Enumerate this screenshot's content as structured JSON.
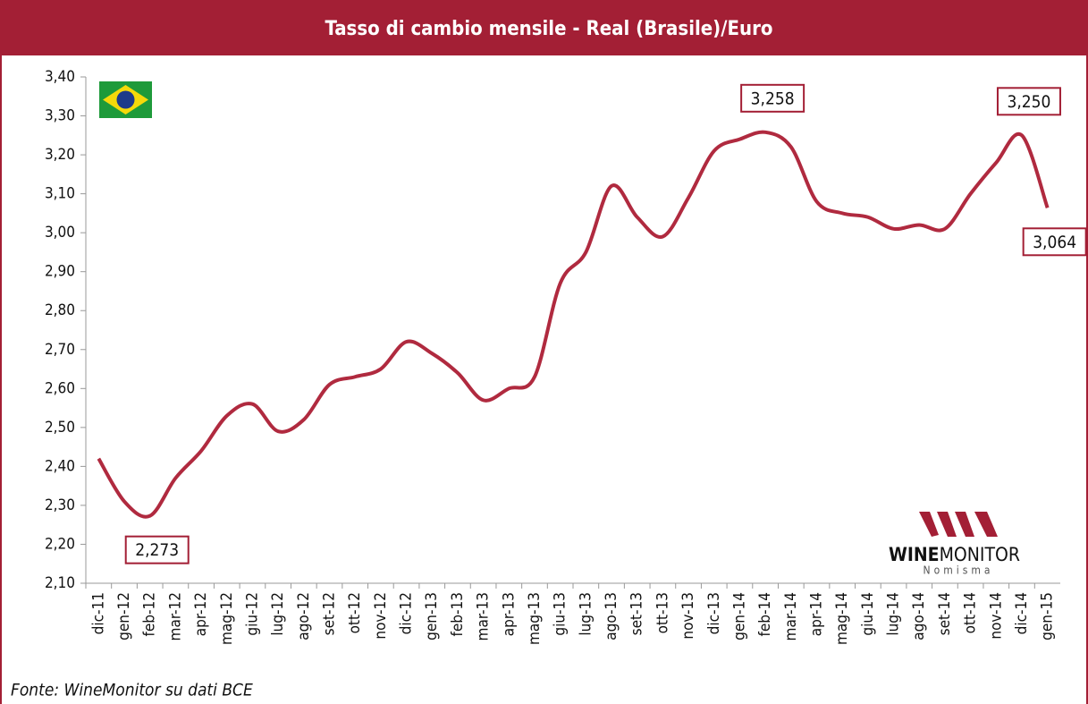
{
  "chart_data": {
    "type": "line",
    "title": "Tasso di cambio mensile -  Real (Brasile)/Euro",
    "source": "Fonte: WineMonitor su dati BCE",
    "logo": {
      "brand_bold": "WINE",
      "brand": "MONITOR",
      "sub": "Nomisma"
    },
    "categories": [
      "dic-11",
      "gen-12",
      "feb-12",
      "mar-12",
      "apr-12",
      "mag-12",
      "giu-12",
      "lug-12",
      "ago-12",
      "set-12",
      "ott-12",
      "nov-12",
      "dic-12",
      "gen-13",
      "feb-13",
      "mar-13",
      "apr-13",
      "mag-13",
      "giu-13",
      "lug-13",
      "ago-13",
      "set-13",
      "ott-13",
      "nov-13",
      "dic-13",
      "gen-14",
      "feb-14",
      "mar-14",
      "apr-14",
      "mag-14",
      "giu-14",
      "lug-14",
      "ago-14",
      "set-14",
      "ott-14",
      "nov-14",
      "dic-14",
      "gen-15"
    ],
    "series": [
      {
        "name": "Real/Euro",
        "color": "#b02a3f",
        "values": [
          2.42,
          2.31,
          2.273,
          2.37,
          2.44,
          2.53,
          2.56,
          2.49,
          2.52,
          2.61,
          2.63,
          2.65,
          2.72,
          2.69,
          2.64,
          2.57,
          2.6,
          2.63,
          2.87,
          2.95,
          3.12,
          3.04,
          2.99,
          3.09,
          3.21,
          3.24,
          3.258,
          3.22,
          3.08,
          3.05,
          3.04,
          3.01,
          3.02,
          3.01,
          3.1,
          3.18,
          3.25,
          3.064
        ],
        "value_labels": [
          null,
          null,
          "2,273",
          null,
          null,
          null,
          null,
          null,
          null,
          null,
          null,
          null,
          null,
          null,
          null,
          null,
          null,
          null,
          null,
          null,
          null,
          null,
          null,
          null,
          null,
          null,
          "3,258",
          null,
          null,
          null,
          null,
          null,
          null,
          null,
          null,
          null,
          "3,250",
          "3,064"
        ]
      }
    ],
    "ylim": [
      2.1,
      3.4
    ],
    "yticks": [
      {
        "value": 2.1,
        "label": "2,10"
      },
      {
        "value": 2.2,
        "label": "2,20"
      },
      {
        "value": 2.3,
        "label": "2,30"
      },
      {
        "value": 2.4,
        "label": "2,40"
      },
      {
        "value": 2.5,
        "label": "2,50"
      },
      {
        "value": 2.6,
        "label": "2,60"
      },
      {
        "value": 2.7,
        "label": "2,70"
      },
      {
        "value": 2.8,
        "label": "2,80"
      },
      {
        "value": 2.9,
        "label": "2,90"
      },
      {
        "value": 3.0,
        "label": "3,00"
      },
      {
        "value": 3.1,
        "label": "3,10"
      },
      {
        "value": 3.2,
        "label": "3,20"
      },
      {
        "value": 3.3,
        "label": "3,30"
      },
      {
        "value": 3.4,
        "label": "3,40"
      }
    ],
    "grid": false
  }
}
